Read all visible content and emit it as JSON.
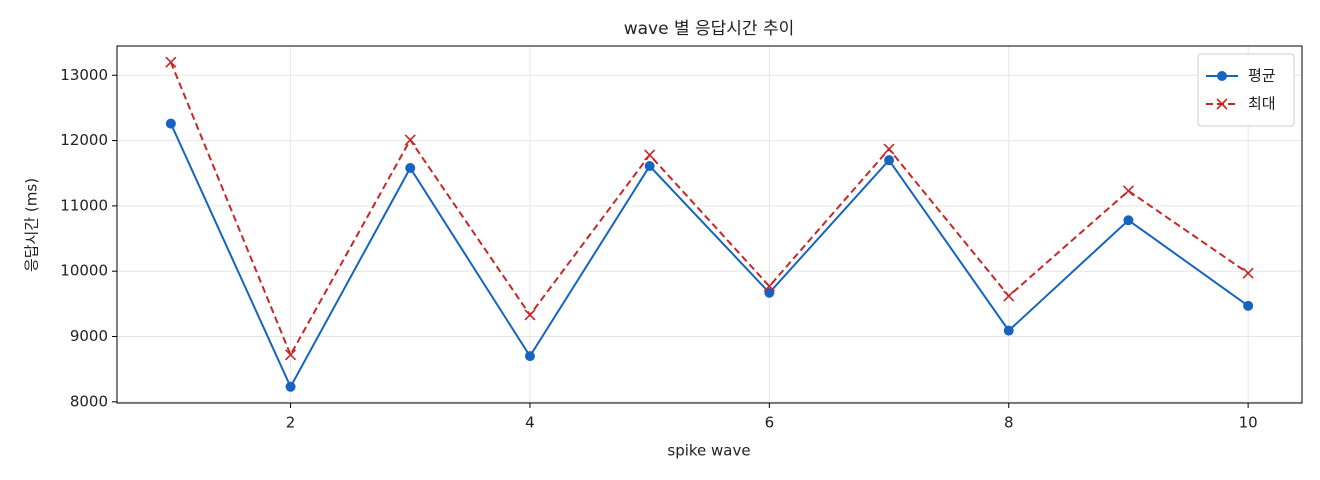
{
  "chart_data": {
    "type": "line",
    "title": "wave 별 응답시간 추이",
    "x_label": "spike wave",
    "y_label": "응답시간 (ms)",
    "x": [
      1,
      2,
      3,
      4,
      5,
      6,
      7,
      8,
      9,
      10
    ],
    "series": [
      {
        "name": "평균",
        "color": "#1565c0",
        "marker": "circle",
        "dash": "solid",
        "values": [
          12260,
          8230,
          11580,
          8700,
          11610,
          9670,
          11700,
          9090,
          10780,
          9470
        ]
      },
      {
        "name": "최대",
        "color": "#c62828",
        "marker": "x",
        "dash": "dashed",
        "values": [
          13200,
          8720,
          12010,
          9330,
          11780,
          9770,
          11870,
          9620,
          11230,
          9970
        ]
      }
    ],
    "xlim": [
      0.55,
      10.45
    ],
    "xticks": [
      2,
      4,
      6,
      8,
      10
    ],
    "ylim": [
      7982,
      13448
    ],
    "yticks": [
      8000,
      9000,
      10000,
      11000,
      12000,
      13000
    ],
    "grid": true,
    "legend": "upper-right"
  }
}
